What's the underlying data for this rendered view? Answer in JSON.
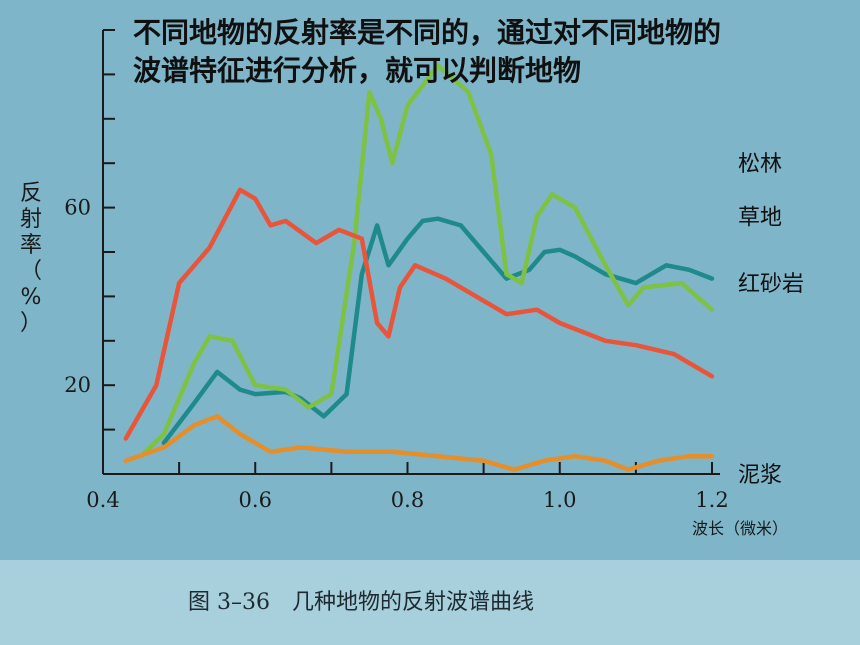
{
  "headline": {
    "line1": "不同地物的反射率是不同的，通过对不同地物的",
    "line2": "波谱特征进行分析，就可以判断地物"
  },
  "caption": "图 3–36　几种地物的反射波谱曲线",
  "chart_data": {
    "type": "line",
    "ylabel_chars": [
      "反",
      "射",
      "率",
      "（",
      "%",
      "）"
    ],
    "xlabel": "波长（微米）",
    "xlim": [
      0.4,
      1.2
    ],
    "ylim": [
      0,
      100
    ],
    "x_ticks": [
      0.4,
      0.6,
      0.8,
      1.0,
      1.2
    ],
    "x_tick_labels": [
      "0.4",
      "0.6",
      "0.8",
      "1.0",
      "1.2"
    ],
    "y_ticks": [
      20,
      60
    ],
    "y_tick_labels": [
      "20",
      "60"
    ],
    "grid": false,
    "colors": {
      "松林": "#1f8a8a",
      "草地": "#7dc242",
      "红砂岩": "#e8553a",
      "泥浆": "#e58e2a"
    },
    "series": [
      {
        "name": "松林",
        "points": [
          [
            0.48,
            7
          ],
          [
            0.52,
            16
          ],
          [
            0.55,
            23
          ],
          [
            0.58,
            19
          ],
          [
            0.6,
            18
          ],
          [
            0.64,
            18.5
          ],
          [
            0.66,
            17
          ],
          [
            0.69,
            13
          ],
          [
            0.72,
            18
          ],
          [
            0.74,
            45
          ],
          [
            0.76,
            56
          ],
          [
            0.775,
            47
          ],
          [
            0.8,
            53
          ],
          [
            0.82,
            57
          ],
          [
            0.84,
            57.5
          ],
          [
            0.87,
            56
          ],
          [
            0.9,
            50
          ],
          [
            0.93,
            44
          ],
          [
            0.96,
            46
          ],
          [
            0.98,
            50
          ],
          [
            1.0,
            50.5
          ],
          [
            1.02,
            49
          ],
          [
            1.06,
            45
          ],
          [
            1.1,
            43
          ],
          [
            1.14,
            47
          ],
          [
            1.17,
            46
          ],
          [
            1.2,
            44
          ]
        ]
      },
      {
        "name": "草地",
        "points": [
          [
            0.45,
            4
          ],
          [
            0.48,
            9
          ],
          [
            0.52,
            25
          ],
          [
            0.54,
            31
          ],
          [
            0.57,
            30
          ],
          [
            0.6,
            20
          ],
          [
            0.64,
            19
          ],
          [
            0.67,
            15
          ],
          [
            0.7,
            18
          ],
          [
            0.73,
            52
          ],
          [
            0.75,
            86
          ],
          [
            0.765,
            80
          ],
          [
            0.78,
            70
          ],
          [
            0.8,
            83
          ],
          [
            0.84,
            92
          ],
          [
            0.88,
            86
          ],
          [
            0.91,
            72
          ],
          [
            0.93,
            45
          ],
          [
            0.95,
            43
          ],
          [
            0.97,
            58
          ],
          [
            0.99,
            63
          ],
          [
            1.02,
            60
          ],
          [
            1.06,
            47
          ],
          [
            1.09,
            38
          ],
          [
            1.11,
            42
          ],
          [
            1.16,
            43
          ],
          [
            1.2,
            37
          ]
        ]
      },
      {
        "name": "红砂岩",
        "points": [
          [
            0.43,
            8
          ],
          [
            0.47,
            20
          ],
          [
            0.5,
            43
          ],
          [
            0.54,
            51
          ],
          [
            0.58,
            64
          ],
          [
            0.6,
            62
          ],
          [
            0.62,
            56
          ],
          [
            0.64,
            57
          ],
          [
            0.68,
            52
          ],
          [
            0.71,
            55
          ],
          [
            0.74,
            53
          ],
          [
            0.76,
            34
          ],
          [
            0.775,
            31
          ],
          [
            0.79,
            42
          ],
          [
            0.81,
            47
          ],
          [
            0.85,
            44
          ],
          [
            0.9,
            39
          ],
          [
            0.93,
            36
          ],
          [
            0.97,
            37
          ],
          [
            1.0,
            34
          ],
          [
            1.06,
            30
          ],
          [
            1.1,
            29
          ],
          [
            1.15,
            27
          ],
          [
            1.2,
            22
          ]
        ]
      },
      {
        "name": "泥浆",
        "points": [
          [
            0.43,
            3
          ],
          [
            0.48,
            6
          ],
          [
            0.52,
            11
          ],
          [
            0.55,
            13
          ],
          [
            0.58,
            9
          ],
          [
            0.62,
            5
          ],
          [
            0.66,
            6
          ],
          [
            0.72,
            5
          ],
          [
            0.78,
            5
          ],
          [
            0.84,
            4
          ],
          [
            0.9,
            3
          ],
          [
            0.94,
            1
          ],
          [
            0.98,
            3
          ],
          [
            1.02,
            4
          ],
          [
            1.06,
            3
          ],
          [
            1.09,
            1
          ],
          [
            1.13,
            3
          ],
          [
            1.17,
            4
          ],
          [
            1.2,
            4
          ]
        ]
      }
    ]
  }
}
